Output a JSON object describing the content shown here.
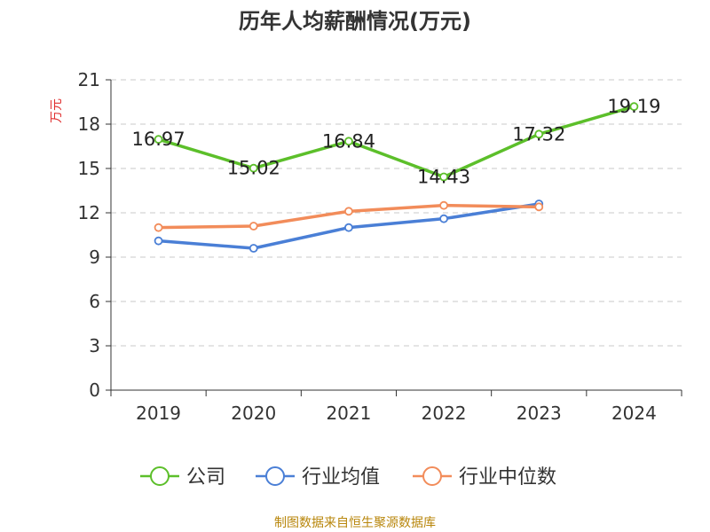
{
  "chart_data": {
    "type": "line",
    "title": "历年人均薪酬情况(万元)",
    "ylabel": "万元",
    "xlabel": "",
    "categories": [
      "2019",
      "2020",
      "2021",
      "2022",
      "2023",
      "2024"
    ],
    "ylim": [
      0,
      21
    ],
    "yticks": [
      0,
      3,
      6,
      9,
      12,
      15,
      18,
      21
    ],
    "grid": true,
    "legend_position": "bottom",
    "series": [
      {
        "name": "公司",
        "color": "#5cbf2a",
        "values": [
          16.97,
          15.02,
          16.84,
          14.43,
          17.32,
          19.19
        ],
        "labels": [
          "16.97",
          "15.02",
          "16.84",
          "14.43",
          "17.32",
          "19.19"
        ]
      },
      {
        "name": "行业均值",
        "color": "#4a7fd6",
        "values": [
          10.1,
          9.6,
          11.0,
          11.6,
          12.6,
          null
        ]
      },
      {
        "name": "行业中位数",
        "color": "#f28c5a",
        "values": [
          11.0,
          11.1,
          12.1,
          12.5,
          12.4,
          null
        ]
      }
    ]
  },
  "footer": {
    "source": "制图数据来自恒生聚源数据库"
  }
}
